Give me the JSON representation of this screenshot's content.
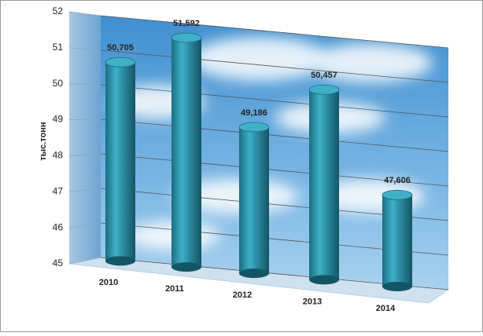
{
  "chart_data": {
    "type": "bar",
    "ylabel": "тыс.тонн",
    "categories": [
      "2010",
      "2011",
      "2012",
      "2013",
      "2014"
    ],
    "values": [
      50.705,
      51.592,
      49.186,
      50.457,
      47.606
    ],
    "value_labels": [
      "50,705",
      "51,592",
      "49,186",
      "50,457",
      "47,606"
    ],
    "color": "#2a8aa0",
    "ylim": [
      45,
      52
    ],
    "yticks": [
      45,
      46,
      47,
      48,
      49,
      50,
      51,
      52
    ],
    "grid": true
  }
}
